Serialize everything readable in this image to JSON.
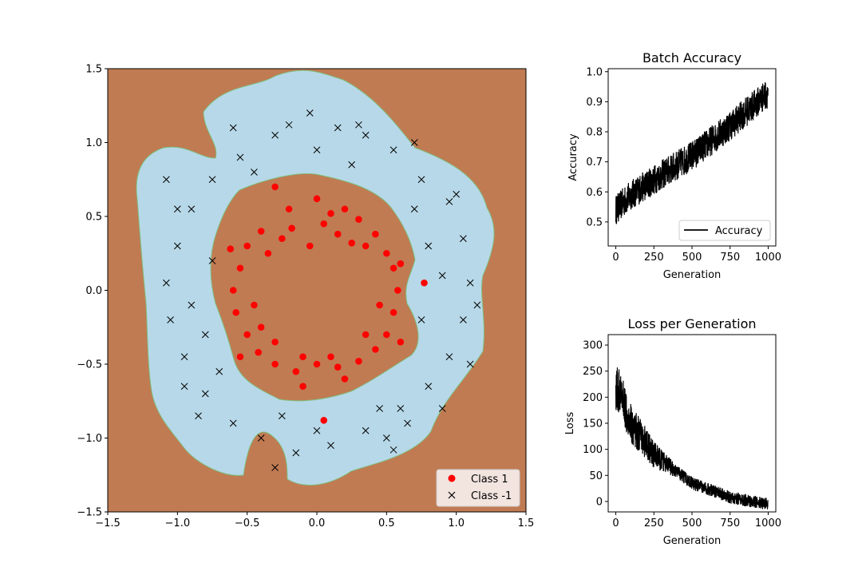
{
  "chart_data": [
    {
      "type": "scatter",
      "title": "",
      "xlabel": "",
      "ylabel": "",
      "xlim": [
        -1.5,
        1.5
      ],
      "ylim": [
        -1.5,
        1.5
      ],
      "x_ticks": [
        "−1.5",
        "−1.0",
        "−0.5",
        "0.0",
        "0.5",
        "1.0",
        "1.5"
      ],
      "y_ticks": [
        "−1.5",
        "−1.0",
        "−0.5",
        "0.0",
        "0.5",
        "1.0",
        "1.5"
      ],
      "background": "decision-boundary contour fill",
      "region_colors": {
        "class_1_region": "#c07b53",
        "class_neg1_region": "#b7d8e8"
      },
      "legend": {
        "position": "lower-right",
        "entries": [
          {
            "label": "Class 1",
            "marker": "circle",
            "color": "#ff0000"
          },
          {
            "label": "Class -1",
            "marker": "x",
            "color": "#000000"
          }
        ]
      },
      "series": [
        {
          "name": "Class 1",
          "note": "points inside radius ~0.5",
          "points": [
            [
              -0.3,
              0.7
            ],
            [
              0.05,
              -0.88
            ],
            [
              0.77,
              0.05
            ],
            [
              -0.2,
              0.55
            ],
            [
              0.0,
              0.62
            ],
            [
              0.1,
              0.52
            ],
            [
              0.2,
              0.55
            ],
            [
              0.3,
              0.48
            ],
            [
              -0.4,
              0.4
            ],
            [
              -0.5,
              0.3
            ],
            [
              -0.55,
              0.15
            ],
            [
              -0.6,
              0.0
            ],
            [
              -0.58,
              -0.15
            ],
            [
              -0.5,
              -0.3
            ],
            [
              -0.42,
              -0.42
            ],
            [
              -0.3,
              -0.5
            ],
            [
              -0.15,
              -0.55
            ],
            [
              0.0,
              -0.5
            ],
            [
              0.15,
              -0.52
            ],
            [
              0.3,
              -0.48
            ],
            [
              0.42,
              -0.4
            ],
            [
              0.5,
              -0.3
            ],
            [
              0.55,
              -0.15
            ],
            [
              0.58,
              0.0
            ],
            [
              0.55,
              0.15
            ],
            [
              0.5,
              0.25
            ],
            [
              0.42,
              0.38
            ],
            [
              -0.35,
              0.25
            ],
            [
              -0.45,
              -0.1
            ],
            [
              0.45,
              -0.1
            ],
            [
              -0.1,
              -0.45
            ],
            [
              0.1,
              -0.45
            ],
            [
              -0.25,
              0.35
            ],
            [
              0.25,
              0.32
            ],
            [
              -0.4,
              -0.25
            ],
            [
              0.35,
              -0.3
            ],
            [
              -0.18,
              0.42
            ],
            [
              0.15,
              0.38
            ],
            [
              0.05,
              0.45
            ],
            [
              -0.05,
              0.3
            ],
            [
              -0.62,
              0.28
            ],
            [
              0.6,
              0.18
            ],
            [
              0.6,
              -0.35
            ],
            [
              -0.55,
              -0.45
            ],
            [
              0.2,
              -0.6
            ],
            [
              -0.1,
              -0.65
            ],
            [
              0.35,
              0.3
            ],
            [
              -0.3,
              -0.35
            ]
          ]
        },
        {
          "name": "Class -1",
          "note": "points in ring radius ~0.7-1.1",
          "points": [
            [
              -0.05,
              1.2
            ],
            [
              0.15,
              1.1
            ],
            [
              0.35,
              1.05
            ],
            [
              0.55,
              0.95
            ],
            [
              0.75,
              0.75
            ],
            [
              0.95,
              0.6
            ],
            [
              1.05,
              0.35
            ],
            [
              1.1,
              0.05
            ],
            [
              1.05,
              -0.2
            ],
            [
              0.95,
              -0.45
            ],
            [
              0.8,
              -0.65
            ],
            [
              0.6,
              -0.8
            ],
            [
              0.35,
              -0.95
            ],
            [
              0.1,
              -1.05
            ],
            [
              -0.15,
              -1.1
            ],
            [
              -0.4,
              -1.0
            ],
            [
              -0.6,
              -0.9
            ],
            [
              -0.8,
              -0.7
            ],
            [
              -0.95,
              -0.45
            ],
            [
              -1.05,
              -0.2
            ],
            [
              -1.08,
              0.05
            ],
            [
              -1.0,
              0.3
            ],
            [
              -0.9,
              0.55
            ],
            [
              -0.75,
              0.75
            ],
            [
              -0.55,
              0.9
            ],
            [
              -0.3,
              1.05
            ],
            [
              -1.08,
              0.75
            ],
            [
              -0.6,
              1.1
            ],
            [
              0.7,
              1.0
            ],
            [
              -0.85,
              -0.85
            ],
            [
              0.9,
              -0.8
            ],
            [
              1.1,
              -0.5
            ],
            [
              0.5,
              -1.0
            ],
            [
              -0.3,
              -1.2
            ],
            [
              0.55,
              -1.08
            ],
            [
              -0.7,
              -0.55
            ],
            [
              0.7,
              0.55
            ],
            [
              -0.75,
              0.2
            ],
            [
              0.75,
              -0.2
            ],
            [
              0.25,
              0.85
            ],
            [
              -0.25,
              -0.85
            ],
            [
              0.8,
              0.3
            ],
            [
              -0.8,
              -0.3
            ],
            [
              0.0,
              0.95
            ],
            [
              0.0,
              -0.95
            ],
            [
              -0.45,
              0.8
            ],
            [
              0.45,
              -0.8
            ],
            [
              -0.9,
              -0.1
            ],
            [
              0.9,
              0.1
            ],
            [
              1.15,
              -0.1
            ],
            [
              -0.95,
              -0.65
            ],
            [
              0.65,
              -0.9
            ],
            [
              -0.2,
              1.12
            ],
            [
              0.3,
              1.12
            ],
            [
              -1.0,
              0.55
            ],
            [
              1.0,
              0.65
            ]
          ]
        }
      ]
    },
    {
      "type": "line",
      "title": "Batch Accuracy",
      "xlabel": "Generation",
      "ylabel": "Accuracy",
      "xlim": [
        -50,
        1050
      ],
      "ylim": [
        0.42,
        1.01
      ],
      "x_ticks": [
        "0",
        "250",
        "500",
        "750",
        "1000"
      ],
      "y_ticks": [
        "0.5",
        "0.6",
        "0.7",
        "0.8",
        "0.9",
        "1.0"
      ],
      "legend": {
        "position": "lower-right",
        "entries": [
          {
            "label": "Accuracy",
            "color": "#000000"
          }
        ]
      },
      "series": [
        {
          "name": "Accuracy",
          "trend": {
            "x": [
              0,
              100,
              250,
              500,
              750,
              1000
            ],
            "y": [
              0.54,
              0.59,
              0.64,
              0.72,
              0.82,
              0.93
            ]
          },
          "noise": 0.05,
          "n_points": 1000
        }
      ]
    },
    {
      "type": "line",
      "title": "Loss per Generation",
      "xlabel": "Generation",
      "ylabel": "Loss",
      "xlim": [
        -50,
        1050
      ],
      "ylim": [
        -20,
        320
      ],
      "x_ticks": [
        "0",
        "250",
        "500",
        "750",
        "1000"
      ],
      "y_ticks": [
        "0",
        "50",
        "100",
        "150",
        "200",
        "250",
        "300"
      ],
      "series": [
        {
          "name": "Loss",
          "trend": {
            "x": [
              0,
              50,
              100,
              250,
              500,
              750,
              1000
            ],
            "y": [
              220,
              190,
              150,
              90,
              35,
              8,
              -5
            ]
          },
          "noise": 12,
          "n_points": 1000
        }
      ]
    }
  ]
}
